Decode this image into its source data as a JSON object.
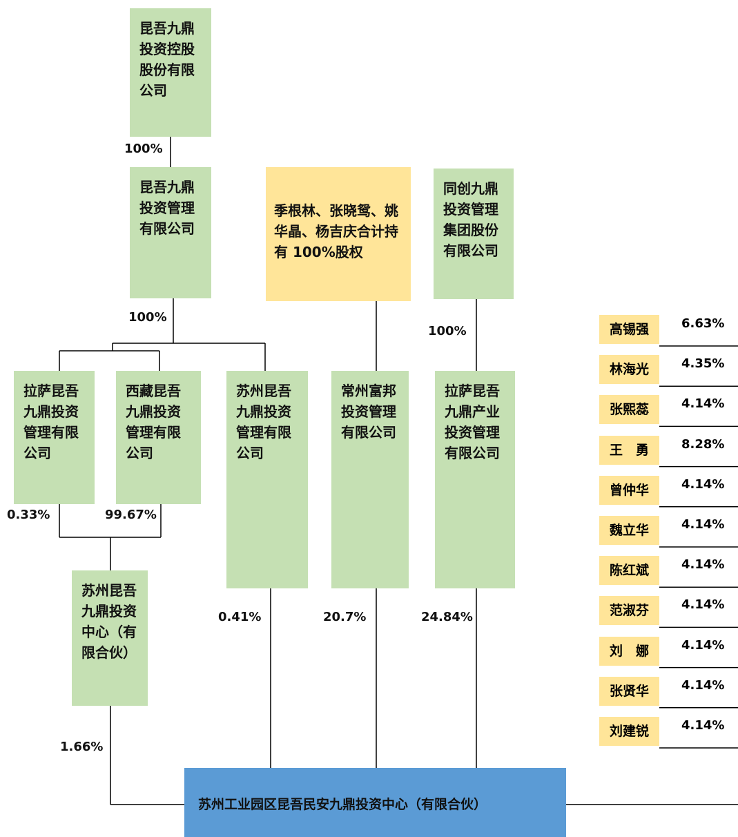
{
  "nodes": [
    {
      "label": "昆吾九鼎投资控股股份有限公司"
    },
    {
      "label": "昆吾九鼎投资管理有限公司"
    },
    {
      "label": "季根林、张晓鸳、姚华晶、杨吉庆合计持有 100%股权"
    },
    {
      "label": "同创九鼎投资管理集团股份有限公司"
    },
    {
      "label": "拉萨昆吾九鼎投资管理有限公司"
    },
    {
      "label": "西藏昆吾九鼎投资管理有限公司"
    },
    {
      "label": "苏州昆吾九鼎投资管理有限公司"
    },
    {
      "label": "常州富邦投资管理有限公司"
    },
    {
      "label": "拉萨昆吾九鼎产业投资管理有限公司"
    },
    {
      "label": "苏州昆吾九鼎投资中心（有限合伙）"
    },
    {
      "label": "苏州工业园区昆吾民安九鼎投资中心（有限合伙）"
    }
  ],
  "edges": [
    {
      "label": "100%"
    },
    {
      "label": "100%"
    },
    {
      "label": "100%"
    },
    {
      "label": "0.33%"
    },
    {
      "label": "99.67%"
    },
    {
      "label": "0.41%"
    },
    {
      "label": "20.7%"
    },
    {
      "label": "24.84%"
    },
    {
      "label": "1.66%"
    }
  ],
  "shareholders": [
    {
      "name": "高锡强",
      "share": "6.63%"
    },
    {
      "name": "林海光",
      "share": "4.35%"
    },
    {
      "name": "张熙蕊",
      "share": "4.14%"
    },
    {
      "name": "王　勇",
      "share": "8.28%"
    },
    {
      "name": "曾仲华",
      "share": "4.14%"
    },
    {
      "name": "魏立华",
      "share": "4.14%"
    },
    {
      "name": "陈红斌",
      "share": "4.14%"
    },
    {
      "name": "范淑芬",
      "share": "4.14%"
    },
    {
      "name": "刘　娜",
      "share": "4.14%"
    },
    {
      "name": "张贤华",
      "share": "4.14%"
    },
    {
      "name": "刘建锐",
      "share": "4.14%"
    }
  ]
}
